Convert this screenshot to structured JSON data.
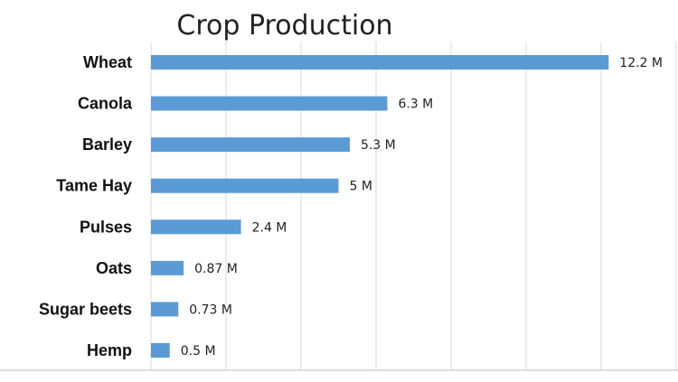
{
  "chart_data": {
    "type": "bar",
    "orientation": "horizontal",
    "title": "Crop Production",
    "xlabel": "",
    "ylabel": "",
    "categories": [
      "Wheat",
      "Canola",
      "Barley",
      "Tame Hay",
      "Pulses",
      "Oats",
      "Sugar beets",
      "Hemp"
    ],
    "values": [
      12.2,
      6.3,
      5.3,
      5,
      2.4,
      0.87,
      0.73,
      0.5
    ],
    "value_labels": [
      "12.2 M",
      "6.3 M",
      "5.3 M",
      "5 M",
      "2.4 M",
      "0.87 M",
      "0.73 M",
      "0.5 M"
    ],
    "xlim": [
      0,
      14
    ],
    "grid": true,
    "legend": "none",
    "bar_color": "#5b9bd5"
  }
}
